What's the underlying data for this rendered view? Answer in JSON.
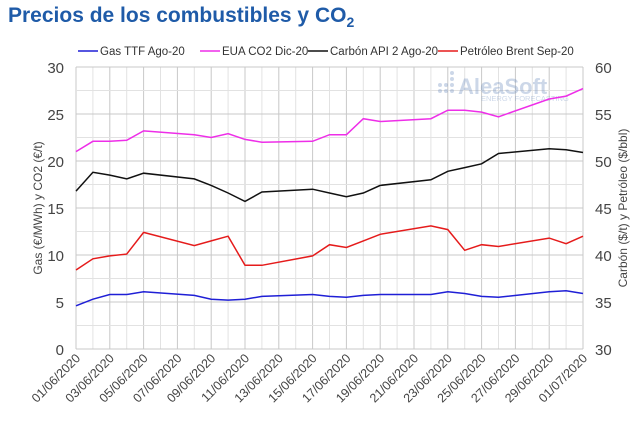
{
  "title": {
    "main": "Precios de los combustibles y CO",
    "sub": "2"
  },
  "watermark": {
    "brand": "AleaSoft",
    "tagline": "ENERGY FORECASTING"
  },
  "chart_data": {
    "type": "line",
    "title": "Precios de los combustibles y CO2",
    "ylabel_left": "Gas (€/MWh) y CO2 (€/t)",
    "ylabel_right": "Carbón ($/t) y Petróleo ($/bbl)",
    "ylim_left": [
      0,
      30
    ],
    "ylim_right": [
      30,
      60
    ],
    "yticks_left": [
      "0",
      "5",
      "10",
      "15",
      "20",
      "25",
      "30"
    ],
    "yticks_right": [
      "30",
      "35",
      "40",
      "45",
      "50",
      "55",
      "60"
    ],
    "grid": true,
    "legend_position": "top",
    "x_ticks": [
      "01/06/2020",
      "03/06/2020",
      "05/06/2020",
      "07/06/2020",
      "09/06/2020",
      "11/06/2020",
      "13/06/2020",
      "15/06/2020",
      "17/06/2020",
      "19/06/2020",
      "21/06/2020",
      "23/06/2020",
      "25/06/2020",
      "27/06/2020",
      "29/06/2020",
      "01/07/2020"
    ],
    "x": [
      "01/06/2020",
      "02/06/2020",
      "03/06/2020",
      "04/06/2020",
      "05/06/2020",
      "08/06/2020",
      "09/06/2020",
      "10/06/2020",
      "11/06/2020",
      "12/06/2020",
      "15/06/2020",
      "16/06/2020",
      "17/06/2020",
      "18/06/2020",
      "19/06/2020",
      "22/06/2020",
      "23/06/2020",
      "24/06/2020",
      "25/06/2020",
      "26/06/2020",
      "29/06/2020",
      "30/06/2020",
      "01/07/2020"
    ],
    "series": [
      {
        "name": "Gas TTF Ago-20",
        "axis": "left",
        "color": "#1f1fd6",
        "values": [
          4.6,
          5.3,
          5.8,
          5.8,
          6.1,
          5.7,
          5.3,
          5.2,
          5.3,
          5.6,
          5.8,
          5.6,
          5.5,
          5.7,
          5.8,
          5.8,
          6.1,
          5.9,
          5.6,
          5.5,
          6.1,
          6.2,
          5.9
        ]
      },
      {
        "name": "EUA CO2 Dic-20",
        "axis": "left",
        "color": "#ee2ee8",
        "values": [
          21.0,
          22.1,
          22.1,
          22.2,
          23.2,
          22.8,
          22.5,
          22.9,
          22.3,
          22.0,
          22.1,
          22.8,
          22.8,
          24.5,
          24.2,
          24.5,
          25.4,
          25.4,
          25.2,
          24.7,
          26.6,
          26.9,
          27.7
        ]
      },
      {
        "name": "Carbón API 2 Ago-20",
        "axis": "right",
        "color": "#111111",
        "values": [
          46.8,
          48.8,
          48.5,
          48.1,
          48.7,
          48.1,
          47.4,
          46.6,
          45.7,
          46.7,
          47.0,
          46.6,
          46.2,
          46.6,
          47.4,
          48.0,
          48.9,
          49.3,
          49.7,
          50.8,
          51.3,
          51.2,
          50.9
        ]
      },
      {
        "name": "Petróleo Brent Sep-20",
        "axis": "right",
        "color": "#e51b1b",
        "values": [
          38.4,
          39.6,
          39.9,
          40.1,
          42.4,
          41.0,
          41.5,
          42.0,
          38.9,
          38.9,
          39.9,
          41.1,
          40.8,
          41.5,
          42.2,
          43.1,
          42.7,
          40.5,
          41.1,
          40.9,
          41.8,
          41.2,
          42.0
        ]
      }
    ]
  }
}
